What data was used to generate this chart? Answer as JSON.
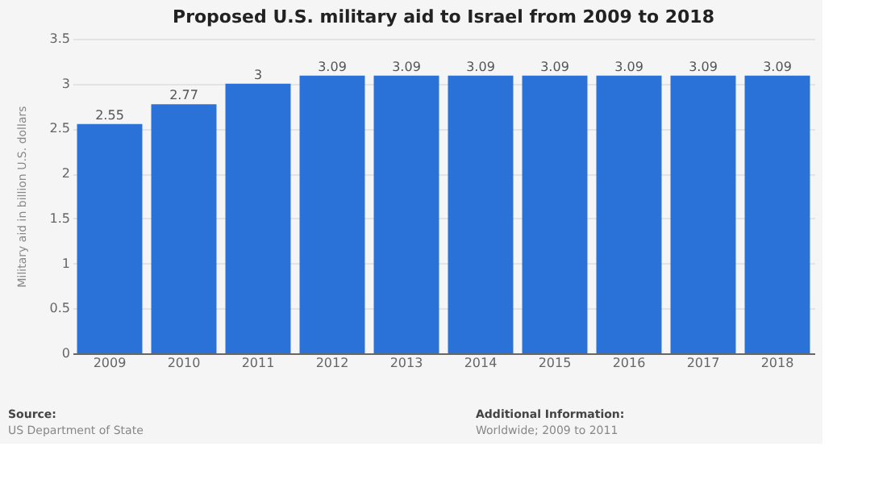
{
  "chart_data": {
    "type": "bar",
    "title": "Proposed U.S. military aid to Israel from 2009 to 2018",
    "ylabel": "Military aid in billion U.S. dollars",
    "categories": [
      "2009",
      "2010",
      "2011",
      "2012",
      "2013",
      "2014",
      "2015",
      "2016",
      "2017",
      "2018"
    ],
    "values": [
      2.55,
      2.77,
      3,
      3.09,
      3.09,
      3.09,
      3.09,
      3.09,
      3.09,
      3.09
    ],
    "color": "#2a72d8",
    "ylim": [
      0,
      3.5
    ],
    "yticks": [
      0,
      0.5,
      1,
      1.5,
      2,
      2.5,
      3,
      3.5
    ],
    "grid": "y",
    "data_labels": true,
    "annotations": [
      "Source:",
      "US Department of State",
      "Additional Information:",
      "Worldwide; 2009 to 2011"
    ]
  }
}
